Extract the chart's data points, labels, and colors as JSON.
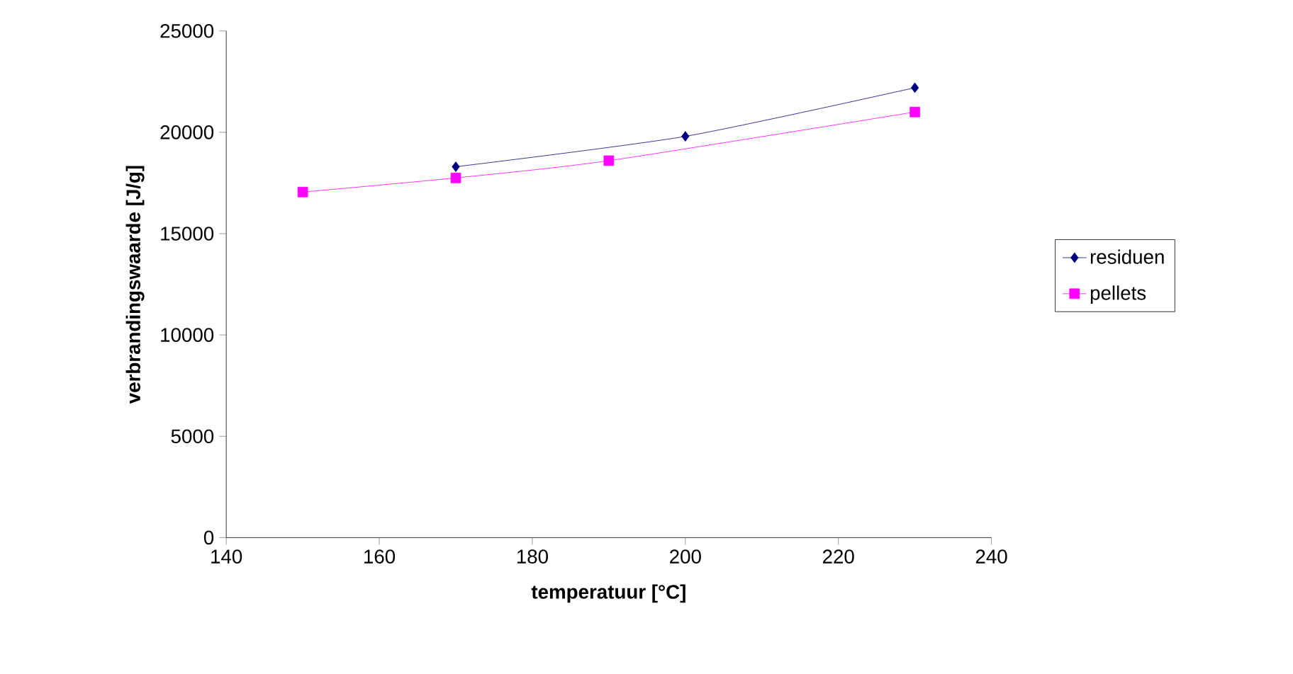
{
  "chart_data": {
    "type": "line",
    "xlabel": "temperatuur [°C]",
    "ylabel": "verbrandingswaarde [J/g]",
    "xlim": [
      140,
      240
    ],
    "xticks": [
      140,
      160,
      180,
      200,
      220,
      240
    ],
    "ylim": [
      0,
      25000
    ],
    "yticks": [
      0,
      5000,
      10000,
      15000,
      20000,
      25000
    ],
    "legend": "right",
    "grid": false,
    "series": [
      {
        "name": "residuen",
        "color": "#000080",
        "marker": "diamond",
        "x": [
          170,
          200,
          230
        ],
        "values": [
          18300,
          19800,
          22200
        ]
      },
      {
        "name": "pellets",
        "color": "#ff00ff",
        "marker": "square",
        "x": [
          150,
          170,
          190,
          230
        ],
        "values": [
          17050,
          17750,
          18600,
          21000
        ]
      }
    ]
  }
}
